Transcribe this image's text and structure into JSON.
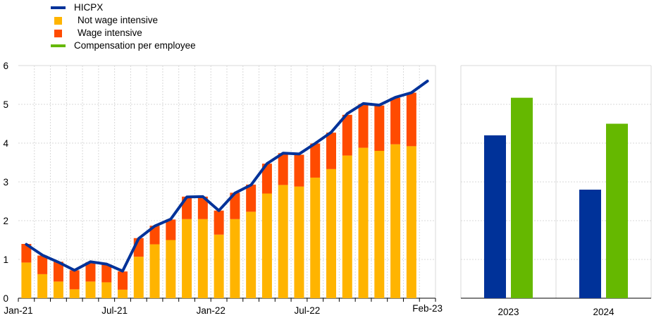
{
  "legend": [
    {
      "label": "HICPX",
      "color": "#003299",
      "kind": "line"
    },
    {
      "label": "Not wage intensive",
      "color": "#FFB400",
      "kind": "box"
    },
    {
      "label": "Wage intensive",
      "color": "#FF4B00",
      "kind": "box"
    },
    {
      "label": "Compensation per employee",
      "color": "#65B800",
      "kind": "line"
    }
  ],
  "chart_data": [
    {
      "type": "bar",
      "subtype": "stacked bar with line",
      "x": [
        "Jan-21",
        "Feb-21",
        "Mar-21",
        "Apr-21",
        "May-21",
        "Jun-21",
        "Jul-21",
        "Aug-21",
        "Sep-21",
        "Oct-21",
        "Nov-21",
        "Dec-21",
        "Jan-22",
        "Feb-22",
        "Mar-22",
        "Apr-22",
        "May-22",
        "Jun-22",
        "Jul-22",
        "Aug-22",
        "Sep-22",
        "Oct-22",
        "Nov-22",
        "Dec-22",
        "Jan-23",
        "Feb-23"
      ],
      "x_tick_labels": [
        "Jan-21",
        "Jul-21",
        "Jan-22",
        "Jul-22",
        "Feb-23"
      ],
      "series": [
        {
          "name": "Not wage intensive",
          "color": "#FFB400",
          "values": [
            0.92,
            0.62,
            0.43,
            0.23,
            0.43,
            0.41,
            0.22,
            1.07,
            1.39,
            1.5,
            2.04,
            2.04,
            1.64,
            2.04,
            2.23,
            2.7,
            2.92,
            2.88,
            3.11,
            3.33,
            3.68,
            3.88,
            3.8,
            3.97,
            3.92,
            null
          ]
        },
        {
          "name": "Wage intensive",
          "color": "#FF4B00",
          "values": [
            0.48,
            0.48,
            0.51,
            0.49,
            0.5,
            0.46,
            0.47,
            0.48,
            0.48,
            0.53,
            0.58,
            0.58,
            0.62,
            0.68,
            0.7,
            0.77,
            0.82,
            0.82,
            0.88,
            0.94,
            1.05,
            1.13,
            1.17,
            1.2,
            1.38,
            null
          ]
        },
        {
          "name": "HICPX",
          "color": "#003299",
          "kind": "line",
          "values": [
            1.39,
            1.11,
            0.93,
            0.72,
            0.94,
            0.88,
            0.7,
            1.54,
            1.86,
            2.04,
            2.61,
            2.62,
            2.26,
            2.71,
            2.92,
            3.47,
            3.74,
            3.72,
            3.99,
            4.28,
            4.76,
            5.02,
            4.98,
            5.18,
            5.3,
            5.6
          ]
        }
      ],
      "ylim": [
        0,
        6
      ],
      "yticks": [
        0,
        1,
        2,
        3,
        4,
        5,
        6
      ],
      "grid": true
    },
    {
      "type": "bar",
      "categories": [
        "2023",
        "2024"
      ],
      "series": [
        {
          "name": "HICPX",
          "color": "#003299",
          "values": [
            4.2,
            2.8
          ]
        },
        {
          "name": "Compensation per employee",
          "color": "#65B800",
          "values": [
            5.17,
            4.5
          ]
        }
      ],
      "ylim": [
        0,
        6
      ],
      "grid": true
    }
  ]
}
